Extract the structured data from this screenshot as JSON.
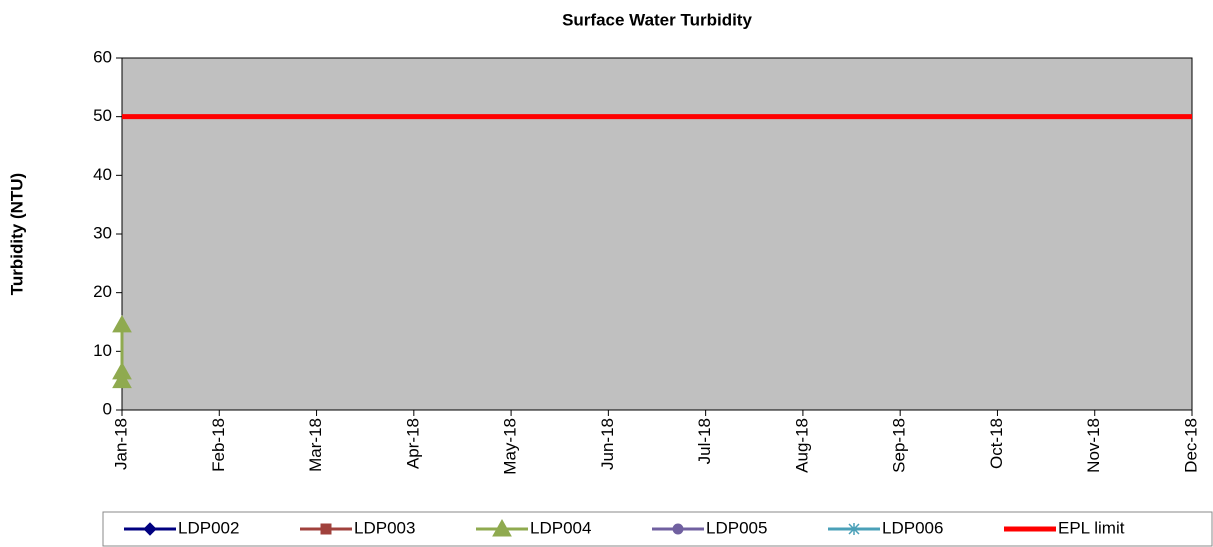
{
  "chart_data": {
    "type": "line",
    "title": "Surface Water Turbidity",
    "ylabel": "Turbidity (NTU)",
    "categories": [
      "Jan-18",
      "Feb-18",
      "Mar-18",
      "Apr-18",
      "May-18",
      "Jun-18",
      "Jul-18",
      "Aug-18",
      "Sep-18",
      "Oct-18",
      "Nov-18",
      "Dec-18"
    ],
    "ylim": [
      0,
      60
    ],
    "yticks": [
      0,
      10,
      20,
      30,
      40,
      50,
      60
    ],
    "plot_background": "#c0c0c0",
    "legend": "bottom",
    "series": [
      {
        "name": "LDP002",
        "color": "#000080",
        "marker": "diamond",
        "x": [],
        "values": []
      },
      {
        "name": "LDP003",
        "color": "#a0413c",
        "marker": "square",
        "x": [],
        "values": []
      },
      {
        "name": "LDP004",
        "color": "#8faa4f",
        "marker": "triangle",
        "x": [
          "Jan-18",
          "Jan-18",
          "Jan-18"
        ],
        "values": [
          14.5,
          6.5,
          5
        ]
      },
      {
        "name": "LDP005",
        "color": "#7060a0",
        "marker": "circle",
        "x": [],
        "values": []
      },
      {
        "name": "LDP006",
        "color": "#4aa0b8",
        "marker": "star",
        "x": [],
        "values": []
      },
      {
        "name": "EPL limit",
        "color": "#ff0000",
        "marker": "none",
        "x": [
          "Jan-18",
          "Dec-18"
        ],
        "values": [
          50,
          50
        ]
      }
    ]
  }
}
